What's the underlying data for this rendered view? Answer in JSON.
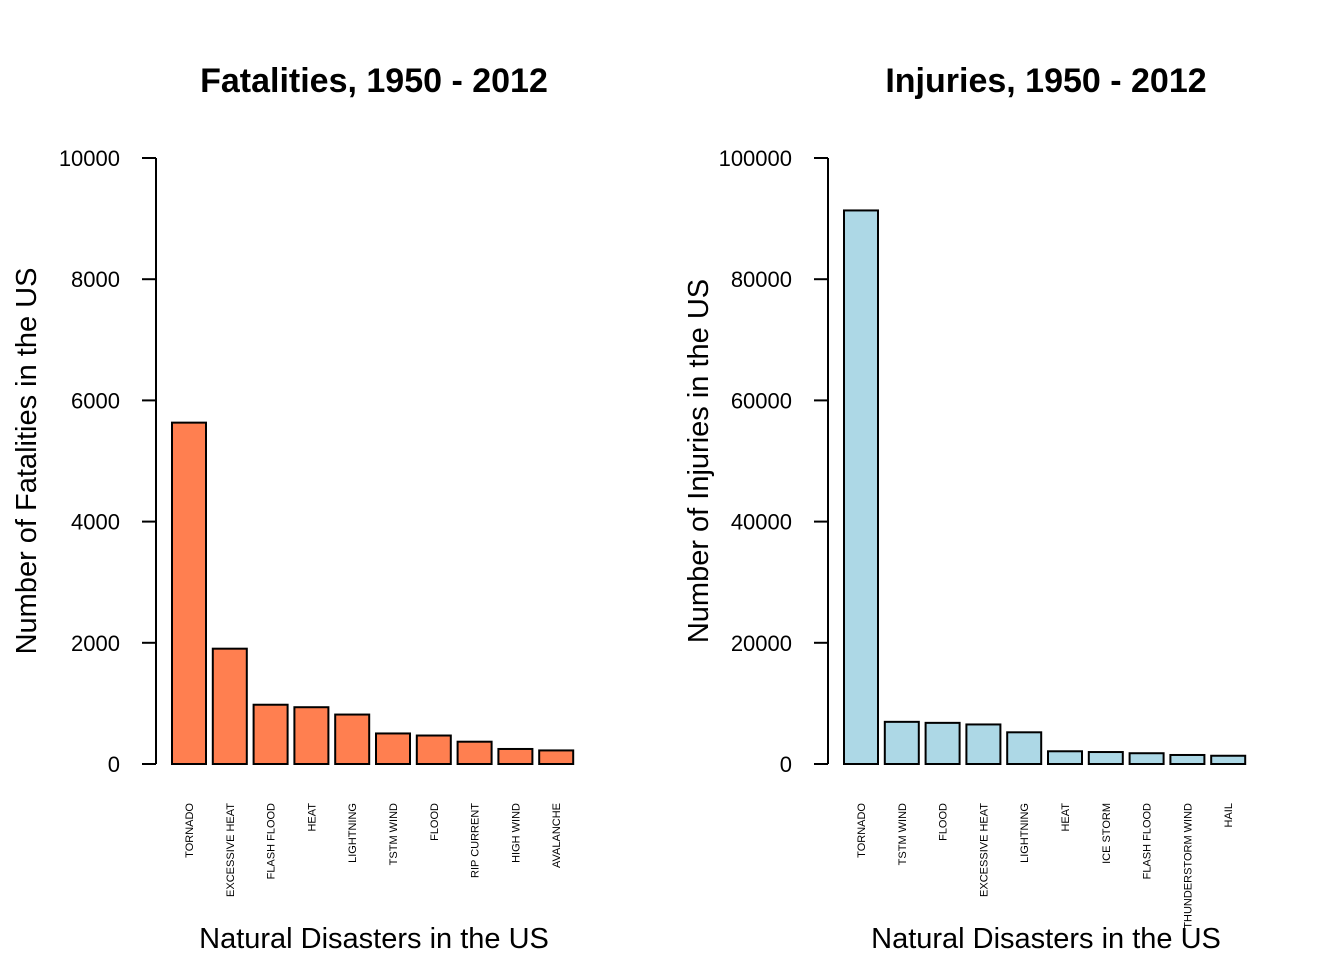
{
  "chart_data": [
    {
      "type": "bar",
      "title": "Fatalities, 1950 - 2012",
      "xlabel": "Natural Disasters in the US",
      "ylabel": "Number of Fatalities in the US",
      "ylim": [
        0,
        10000
      ],
      "yticks": [
        "0",
        "2000",
        "4000",
        "6000",
        "8000",
        "10000"
      ],
      "bar_color": "#FF7F50",
      "grid": false,
      "categories": [
        "TORNADO",
        "EXCESSIVE HEAT",
        "FLASH FLOOD",
        "HEAT",
        "LIGHTNING",
        "TSTM WIND",
        "FLOOD",
        "RIP CURRENT",
        "HIGH WIND",
        "AVALANCHE"
      ],
      "values": [
        5633,
        1903,
        978,
        937,
        816,
        504,
        470,
        368,
        248,
        224
      ]
    },
    {
      "type": "bar",
      "title": "Injuries, 1950 - 2012",
      "xlabel": "Natural Disasters in the US",
      "ylabel": "Number of Injuries in the US",
      "ylim": [
        0,
        100000
      ],
      "yticks": [
        "0",
        "20000",
        "40000",
        "60000",
        "80000",
        "100000"
      ],
      "bar_color": "#ADD8E6",
      "grid": false,
      "categories": [
        "TORNADO",
        "TSTM WIND",
        "FLOOD",
        "EXCESSIVE HEAT",
        "LIGHTNING",
        "HEAT",
        "ICE STORM",
        "FLASH FLOOD",
        "THUNDERSTORM WIND",
        "HAIL"
      ],
      "values": [
        91346,
        6957,
        6789,
        6525,
        5230,
        2100,
        1975,
        1777,
        1488,
        1361
      ]
    }
  ]
}
